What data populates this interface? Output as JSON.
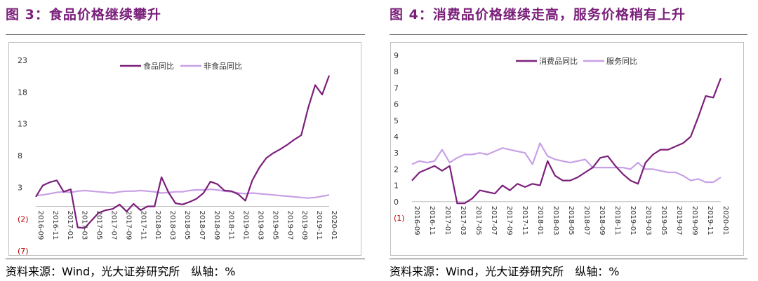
{
  "left": {
    "title": "图 3：食品价格继续攀升",
    "source": "资料来源：Wind，光大证券研究所　纵轴：%",
    "chart_data": {
      "type": "line",
      "y_ticks": [
        "23",
        "18",
        "13",
        "8",
        "3",
        "(2)",
        "(7)"
      ],
      "ylim": [
        -7,
        23
      ],
      "x_tick_labels": [
        "2016-09",
        "2016-11",
        "2017-01",
        "2017-03",
        "2017-05",
        "2017-07",
        "2017-09",
        "2017-11",
        "2018-01",
        "2018-03",
        "2018-05",
        "2018-07",
        "2018-09",
        "2018-11",
        "2019-01",
        "2019-03",
        "2019-05",
        "2019-07",
        "2019-09",
        "2019-11",
        "2020-01"
      ],
      "legend_position": "top-center",
      "series": [
        {
          "name": "食品同比",
          "color": "#7b1f7b",
          "values": [
            1.5,
            3.3,
            3.8,
            4.1,
            2.3,
            2.7,
            -3.3,
            -3.4,
            -2.2,
            -1.0,
            -0.6,
            -0.4,
            0.3,
            -0.8,
            0.4,
            -0.6,
            0.0,
            0.0,
            4.6,
            2.2,
            0.5,
            0.3,
            0.7,
            1.2,
            2.1,
            3.9,
            3.5,
            2.5,
            2.4,
            1.9,
            0.9,
            4.1,
            6.1,
            7.6,
            8.4,
            9.0,
            9.7,
            10.5,
            11.2,
            15.5,
            19.1,
            17.6,
            20.6
          ]
        },
        {
          "name": "非食品同比",
          "color": "#c8a0e6",
          "values": [
            1.7,
            1.8,
            2.0,
            2.2,
            2.3,
            2.2,
            2.4,
            2.5,
            2.4,
            2.3,
            2.2,
            2.1,
            2.3,
            2.4,
            2.4,
            2.5,
            2.4,
            2.3,
            2.1,
            2.2,
            2.3,
            2.3,
            2.5,
            2.6,
            2.6,
            2.7,
            2.6,
            2.4,
            2.3,
            2.1,
            2.0,
            2.1,
            2.0,
            1.9,
            1.8,
            1.7,
            1.6,
            1.5,
            1.4,
            1.3,
            1.4,
            1.6,
            1.8
          ]
        }
      ]
    }
  },
  "right": {
    "title": "图 4：消费品价格继续走高，服务价格稍有上升",
    "source": "资料来源：Wind，光大证券研究所　纵轴：%",
    "chart_data": {
      "type": "line",
      "y_ticks": [
        "9",
        "8",
        "7",
        "6",
        "5",
        "4",
        "3",
        "2",
        "1",
        "0",
        "(1)"
      ],
      "ylim": [
        -1,
        9
      ],
      "x_tick_labels": [
        "2016-09",
        "2016-11",
        "2017-01",
        "2017-03",
        "2017-05",
        "2017-07",
        "2017-09",
        "2017-11",
        "2018-01",
        "2018-03",
        "2018-05",
        "2018-07",
        "2018-09",
        "2018-11",
        "2019-01",
        "2019-03",
        "2019-05",
        "2019-07",
        "2019-09",
        "2019-11",
        "2020-01"
      ],
      "legend_position": "top-center",
      "series": [
        {
          "name": "消费品同比",
          "color": "#7b1f7b",
          "values": [
            1.3,
            1.8,
            2.0,
            2.2,
            1.9,
            2.2,
            -0.1,
            -0.1,
            0.2,
            0.7,
            0.6,
            0.5,
            1.0,
            0.7,
            1.1,
            0.9,
            1.1,
            1.0,
            2.5,
            1.6,
            1.3,
            1.3,
            1.5,
            1.8,
            2.1,
            2.7,
            2.8,
            2.2,
            1.7,
            1.3,
            1.1,
            2.4,
            2.9,
            3.2,
            3.2,
            3.4,
            3.6,
            4.0,
            5.2,
            6.5,
            6.4,
            7.6
          ]
        },
        {
          "name": "服务同比",
          "color": "#c8a0e6",
          "values": [
            2.3,
            2.5,
            2.4,
            2.5,
            3.2,
            2.4,
            2.7,
            2.9,
            2.9,
            3.0,
            2.9,
            3.1,
            3.3,
            3.2,
            3.1,
            3.0,
            2.3,
            3.6,
            2.8,
            2.6,
            2.5,
            2.4,
            2.5,
            2.6,
            2.1,
            2.1,
            2.1,
            2.1,
            2.1,
            2.0,
            2.4,
            2.0,
            2.0,
            1.9,
            1.8,
            1.8,
            1.6,
            1.3,
            1.4,
            1.2,
            1.2,
            1.5
          ]
        }
      ]
    }
  }
}
